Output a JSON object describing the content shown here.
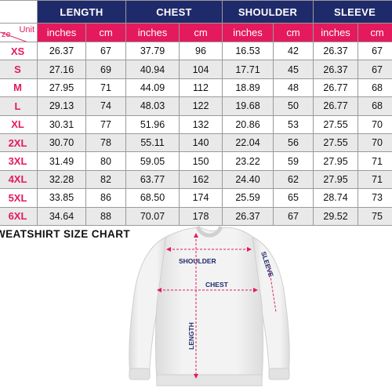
{
  "header": {
    "groups": [
      "LENGTH",
      "CHEST",
      "SHOULDER",
      "SLEEVE"
    ],
    "corner_unit": "Unit",
    "corner_size": "ze",
    "units": [
      "inches",
      "cm",
      "inches",
      "cm",
      "inches",
      "cm",
      "inches",
      "cm"
    ]
  },
  "rows": [
    {
      "size": "XS",
      "cells": [
        "26.37",
        "67",
        "37.79",
        "96",
        "16.53",
        "42",
        "26.37",
        "67"
      ]
    },
    {
      "size": "S",
      "cells": [
        "27.16",
        "69",
        "40.94",
        "104",
        "17.71",
        "45",
        "26.37",
        "67"
      ]
    },
    {
      "size": "M",
      "cells": [
        "27.95",
        "71",
        "44.09",
        "112",
        "18.89",
        "48",
        "26.77",
        "68"
      ]
    },
    {
      "size": "L",
      "cells": [
        "29.13",
        "74",
        "48.03",
        "122",
        "19.68",
        "50",
        "26.77",
        "68"
      ]
    },
    {
      "size": "XL",
      "cells": [
        "30.31",
        "77",
        "51.96",
        "132",
        "20.86",
        "53",
        "27.55",
        "70"
      ]
    },
    {
      "size": "2XL",
      "cells": [
        "30.70",
        "78",
        "55.11",
        "140",
        "22.04",
        "56",
        "27.55",
        "70"
      ]
    },
    {
      "size": "3XL",
      "cells": [
        "31.49",
        "80",
        "59.05",
        "150",
        "23.22",
        "59",
        "27.95",
        "71"
      ]
    },
    {
      "size": "4XL",
      "cells": [
        "32.28",
        "82",
        "63.77",
        "162",
        "24.40",
        "62",
        "27.95",
        "71"
      ]
    },
    {
      "size": "5XL",
      "cells": [
        "33.85",
        "86",
        "68.50",
        "174",
        "25.59",
        "65",
        "28.74",
        "73"
      ]
    },
    {
      "size": "6XL",
      "cells": [
        "34.64",
        "88",
        "70.07",
        "178",
        "26.37",
        "67",
        "29.52",
        "75"
      ]
    }
  ],
  "chart_title": "WEATSHIRT SIZE CHART",
  "diagram": {
    "shoulder": "SHOULDER",
    "chest": "CHEST",
    "sleeve": "SLEEVE",
    "length": "LENGTH"
  },
  "colors": {
    "navy": "#1f2a6b",
    "pink": "#e5195e",
    "garment": "#f1f1f1"
  }
}
